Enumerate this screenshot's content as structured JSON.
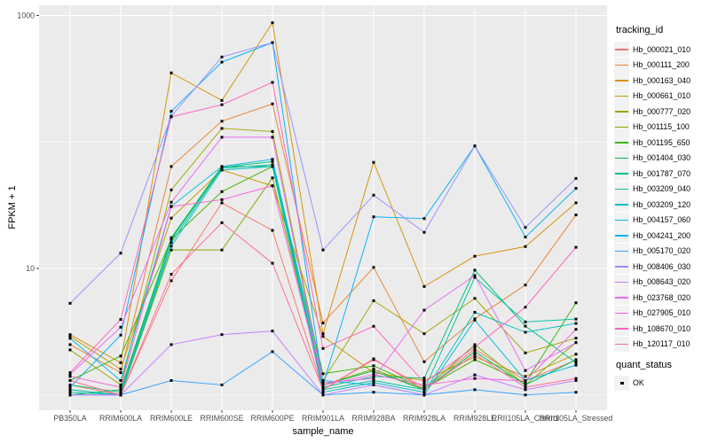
{
  "figure": {
    "background": "#FFFFFF",
    "panel_background": "#EBEBEB",
    "grid_color": "#FFFFFF",
    "tick_mark_color": "#333333",
    "tick_label_color": "#4D4D4D",
    "marker_color": "#000000"
  },
  "legend": {
    "color_legend_title": "tracking_id",
    "shape_legend_title": "quant_status",
    "shape_item_label": "OK"
  },
  "chart_data": {
    "type": "line",
    "title": "",
    "xlabel": "sample_name",
    "ylabel": "FPKM + 1",
    "y_scale": "log10",
    "y_tick_values": [
      1000,
      10
    ],
    "y_tick_labels": [
      "1000",
      "10"
    ],
    "y_minor_grid_values": [
      100,
      1
    ],
    "ylim_log": [
      0.76,
      1200
    ],
    "grid": true,
    "legend_position": "right",
    "marker": "small black square (quant_status = OK on every point)",
    "categories": [
      "PB350LA",
      "RRIM600LA",
      "RRIM600LE",
      "RRIM600SE",
      "RRIM600PE",
      "RRIM901LA",
      "RRIM928BA",
      "RRIM928LA",
      "RRIM928LE",
      "RRII105LA_Control",
      "RRII105LA_Stressed"
    ],
    "series": [
      {
        "name": "Hb_000021_010",
        "color": "#F8766D",
        "values": [
          1.2,
          1.0,
          8.0,
          33,
          20,
          1.1,
          1.9,
          1.15,
          2.3,
          1.3,
          1.88
        ]
      },
      {
        "name": "Hb_000111_200",
        "color": "#EA8331",
        "values": [
          2.5,
          1.5,
          64,
          146,
          200,
          3.7,
          10.2,
          1.83,
          4.0,
          7.4,
          26.5
        ]
      },
      {
        "name": "Hb_000163_040",
        "color": "#D89000",
        "values": [
          3.0,
          1.8,
          352,
          213,
          877,
          3.05,
          69,
          7.2,
          12.5,
          14.9,
          33
        ]
      },
      {
        "name": "Hb_000661_010",
        "color": "#C09B00",
        "values": [
          2.9,
          1.6,
          25,
          60,
          45,
          2.9,
          1.5,
          1.3,
          2.0,
          1.4,
          2.1
        ]
      },
      {
        "name": "Hb_000777_020",
        "color": "#A3A500",
        "values": [
          2.27,
          1.2,
          41.8,
          128,
          121,
          1.3,
          5.56,
          3.05,
          5.8,
          2.15,
          2.81
        ]
      },
      {
        "name": "Hb_001115_100",
        "color": "#7CAE00",
        "values": [
          1.1,
          1.0,
          14,
          14,
          52,
          1.2,
          1.6,
          1.1,
          2.5,
          1.2,
          2.6
        ]
      },
      {
        "name": "Hb_001195_650",
        "color": "#39B600",
        "values": [
          1.3,
          2.03,
          17,
          40.5,
          64,
          1.47,
          1.7,
          1.12,
          1.9,
          1.25,
          5.35
        ]
      },
      {
        "name": "Hb_001404_030",
        "color": "#00BB4E",
        "values": [
          1.0,
          1.1,
          17.5,
          64,
          64,
          1.2,
          1.55,
          1.1,
          2.2,
          1.2,
          1.9
        ]
      },
      {
        "name": "Hb_001787_070",
        "color": "#00BF7D",
        "values": [
          1.2,
          1.05,
          17,
          63,
          70,
          1.15,
          1.4,
          1.36,
          9.7,
          3.5,
          1.8
        ]
      },
      {
        "name": "Hb_003209_040",
        "color": "#00C1A3",
        "values": [
          1.05,
          1.0,
          16,
          62,
          66,
          1.1,
          1.3,
          1.1,
          8.5,
          3.78,
          3.98
        ]
      },
      {
        "name": "Hb_003209_120",
        "color": "#00BFC4",
        "values": [
          1.1,
          1.0,
          15,
          60,
          64,
          1.05,
          1.25,
          1.05,
          4.5,
          3.13,
          3.68
        ]
      },
      {
        "name": "Hb_004157_060",
        "color": "#00BAE0",
        "values": [
          2.8,
          1.3,
          31,
          64,
          73,
          1.3,
          1.2,
          1.0,
          3.9,
          1.3,
          1.72
        ]
      },
      {
        "name": "Hb_004241_200",
        "color": "#00B0F6",
        "values": [
          1.15,
          2.97,
          175,
          428,
          611,
          1.2,
          25.6,
          24.8,
          93,
          17.7,
          43
        ]
      },
      {
        "name": "Hb_005170_020",
        "color": "#35A2FF",
        "values": [
          1.0,
          1.0,
          1.3,
          1.2,
          2.2,
          1.0,
          1.05,
          1.0,
          1.1,
          1.0,
          1.05
        ]
      },
      {
        "name": "Hb_008406_030",
        "color": "#9590FF",
        "values": [
          5.3,
          13.2,
          160,
          470,
          611,
          14,
          38,
          19.3,
          93,
          21.1,
          51.5
        ]
      },
      {
        "name": "Hb_008643_020",
        "color": "#C77CFF",
        "values": [
          1.0,
          1.0,
          2.5,
          3.0,
          3.2,
          1.0,
          1.2,
          1.0,
          1.44,
          1.1,
          1.3
        ]
      },
      {
        "name": "Hb_023768_020",
        "color": "#E76BF3",
        "values": [
          1.45,
          3.43,
          33.4,
          109,
          109,
          1.25,
          1.35,
          4.68,
          8.8,
          1.56,
          2.59
        ]
      },
      {
        "name": "Hb_027905_010",
        "color": "#FA62DB",
        "values": [
          1.4,
          1.15,
          30.8,
          35,
          45,
          1.2,
          1.45,
          1.2,
          1.35,
          1.29,
          3.3
        ]
      },
      {
        "name": "Hb_108670_010",
        "color": "#FF62BC",
        "values": [
          1.5,
          3.95,
          158,
          197,
          296,
          2.33,
          3.49,
          1.25,
          2.4,
          4.94,
          14.7
        ]
      },
      {
        "name": "Hb_120117_010",
        "color": "#FF6A98",
        "values": [
          1.3,
          1.0,
          9.0,
          23,
          11,
          1.1,
          1.93,
          1.1,
          2.1,
          1.15,
          1.35
        ]
      }
    ]
  }
}
